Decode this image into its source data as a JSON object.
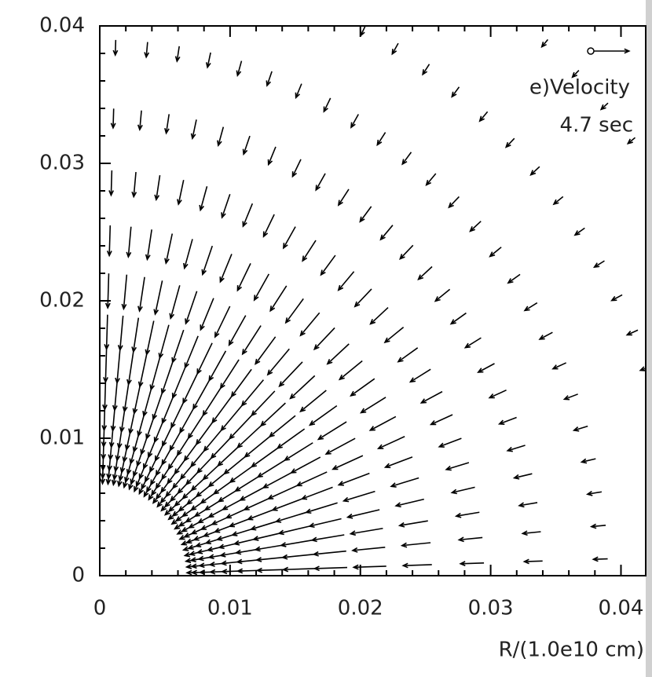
{
  "chart_data": {
    "type": "quiver",
    "annotations": [
      "e)Velocity",
      "4.7 sec"
    ],
    "x_label": "R/(1.0e10 cm)",
    "xlim": [
      0,
      0.0419
    ],
    "ylim": [
      0,
      0.04
    ],
    "xticks": [
      0,
      0.01,
      0.02,
      0.03,
      0.04
    ],
    "yticks": [
      0,
      0.01,
      0.02,
      0.03,
      0.04
    ],
    "radii": [
      0.0075,
      0.008,
      0.0088,
      0.0098,
      0.011,
      0.0125,
      0.0143,
      0.0165,
      0.019,
      0.022,
      0.0255,
      0.0295,
      0.034,
      0.039,
      0.045,
      0.052
    ],
    "angles_deg": [
      1.8,
      5.4,
      9,
      12.6,
      16.2,
      19.8,
      23.4,
      27,
      30.6,
      34.2,
      37.8,
      41.4,
      45,
      48.6,
      52.2,
      55.8,
      59.4,
      63,
      66.6,
      70.2,
      73.8,
      77.4,
      81,
      84.6,
      88.2
    ],
    "speed": [
      0.0008,
      0.0009,
      0.0011,
      0.0013,
      0.0016,
      0.0019,
      0.0022,
      0.0024,
      0.0025,
      0.0025,
      0.0022,
      0.0018,
      0.0014,
      0.0011,
      0.0009,
      0.0007
    ],
    "reference_vector": 0.0027,
    "color": "#000000"
  }
}
